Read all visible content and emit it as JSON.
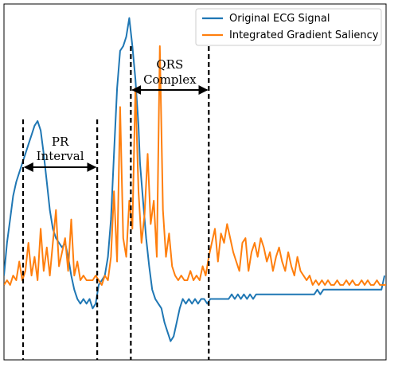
{
  "chart_data": {
    "type": "line",
    "xlim": [
      0,
      500
    ],
    "ylim": [
      -1.6,
      6.0
    ],
    "grid": false,
    "axis_ticks": false,
    "legend_location": "top-right",
    "series": [
      {
        "name": "Original ECG Signal",
        "color": "#1f77b4",
        "x": [
          0,
          4,
          8,
          12,
          16,
          20,
          24,
          28,
          32,
          36,
          40,
          44,
          48,
          52,
          56,
          60,
          64,
          68,
          72,
          76,
          80,
          84,
          88,
          92,
          96,
          100,
          104,
          108,
          112,
          116,
          120,
          124,
          128,
          132,
          136,
          140,
          144,
          148,
          152,
          156,
          160,
          164,
          168,
          172,
          176,
          178,
          182,
          186,
          190,
          194,
          198,
          202,
          206,
          210,
          214,
          218,
          222,
          226,
          230,
          234,
          238,
          242,
          246,
          250,
          254,
          258,
          262,
          266,
          270,
          274,
          278,
          282,
          286,
          290,
          294,
          298,
          302,
          306,
          310,
          314,
          318,
          322,
          326,
          330,
          334,
          338,
          342,
          346,
          350,
          354,
          358,
          362,
          366,
          370,
          374,
          378,
          382,
          386,
          390,
          394,
          398,
          402,
          406,
          410,
          414,
          418,
          422,
          426,
          430,
          434,
          438,
          442,
          446,
          450,
          454,
          458,
          462,
          466,
          470,
          474,
          478,
          482,
          486,
          490,
          494,
          498
        ],
        "y": [
          0.2,
          0.9,
          1.4,
          1.9,
          2.2,
          2.4,
          2.6,
          2.8,
          3.0,
          3.2,
          3.4,
          3.5,
          3.3,
          2.8,
          2.2,
          1.6,
          1.2,
          1.0,
          0.9,
          0.8,
          0.9,
          0.6,
          0.2,
          -0.1,
          -0.3,
          -0.4,
          -0.3,
          -0.4,
          -0.3,
          -0.5,
          -0.4,
          0.0,
          0.1,
          0.2,
          0.6,
          1.4,
          2.8,
          4.2,
          5.0,
          5.1,
          5.3,
          5.7,
          5.1,
          4.4,
          3.4,
          2.6,
          1.8,
          1.0,
          0.4,
          -0.1,
          -0.3,
          -0.4,
          -0.5,
          -0.8,
          -1.0,
          -1.2,
          -1.1,
          -0.8,
          -0.5,
          -0.3,
          -0.4,
          -0.3,
          -0.4,
          -0.3,
          -0.4,
          -0.3,
          -0.3,
          -0.4,
          -0.3,
          -0.3,
          -0.3,
          -0.3,
          -0.3,
          -0.3,
          -0.3,
          -0.2,
          -0.3,
          -0.2,
          -0.3,
          -0.2,
          -0.3,
          -0.2,
          -0.3,
          -0.2,
          -0.2,
          -0.2,
          -0.2,
          -0.2,
          -0.2,
          -0.2,
          -0.2,
          -0.2,
          -0.2,
          -0.2,
          -0.2,
          -0.2,
          -0.2,
          -0.2,
          -0.2,
          -0.2,
          -0.2,
          -0.2,
          -0.2,
          -0.1,
          -0.2,
          -0.1,
          -0.1,
          -0.1,
          -0.1,
          -0.1,
          -0.1,
          -0.1,
          -0.1,
          -0.1,
          -0.1,
          -0.1,
          -0.1,
          -0.1,
          -0.1,
          -0.1,
          -0.1,
          -0.1,
          -0.1,
          -0.1,
          -0.1,
          0.2
        ]
      },
      {
        "name": "Integrated Gradient Saliency",
        "color": "#ff7f0e",
        "x": [
          0,
          4,
          8,
          12,
          16,
          20,
          24,
          28,
          32,
          36,
          40,
          44,
          48,
          52,
          56,
          60,
          64,
          68,
          72,
          76,
          80,
          84,
          88,
          92,
          96,
          100,
          104,
          108,
          112,
          116,
          120,
          124,
          128,
          132,
          136,
          140,
          144,
          148,
          152,
          156,
          160,
          164,
          168,
          172,
          176,
          180,
          184,
          188,
          192,
          196,
          200,
          204,
          208,
          212,
          216,
          220,
          224,
          228,
          232,
          236,
          240,
          244,
          248,
          252,
          256,
          260,
          264,
          268,
          272,
          276,
          280,
          284,
          288,
          292,
          296,
          300,
          304,
          308,
          312,
          316,
          320,
          324,
          328,
          332,
          336,
          340,
          344,
          348,
          352,
          356,
          360,
          364,
          368,
          372,
          376,
          380,
          384,
          388,
          392,
          396,
          400,
          404,
          408,
          412,
          416,
          420,
          424,
          428,
          432,
          436,
          440,
          444,
          448,
          452,
          456,
          460,
          464,
          468,
          472,
          476,
          480,
          484,
          488,
          492,
          496,
          500
        ],
        "y": [
          0.0,
          0.1,
          0.0,
          0.2,
          0.1,
          0.5,
          0.1,
          0.3,
          0.9,
          0.2,
          0.6,
          0.1,
          1.2,
          0.3,
          0.8,
          0.2,
          0.9,
          1.6,
          0.4,
          0.7,
          1.0,
          0.3,
          1.4,
          0.2,
          0.5,
          0.1,
          0.2,
          0.1,
          0.1,
          0.1,
          0.2,
          0.1,
          0.0,
          0.2,
          0.1,
          0.6,
          2.0,
          0.5,
          3.8,
          1.0,
          0.6,
          1.8,
          1.2,
          4.2,
          2.0,
          0.9,
          1.5,
          2.8,
          1.3,
          1.8,
          0.6,
          5.1,
          1.6,
          0.6,
          1.1,
          0.4,
          0.2,
          0.1,
          0.2,
          0.1,
          0.1,
          0.3,
          0.1,
          0.2,
          0.1,
          0.4,
          0.2,
          0.6,
          0.9,
          1.2,
          0.5,
          1.1,
          0.9,
          1.3,
          1.0,
          0.7,
          0.5,
          0.3,
          0.9,
          1.0,
          0.3,
          0.7,
          0.9,
          0.6,
          1.0,
          0.8,
          0.5,
          0.7,
          0.3,
          0.6,
          0.8,
          0.5,
          0.3,
          0.7,
          0.4,
          0.2,
          0.6,
          0.3,
          0.2,
          0.1,
          0.2,
          0.0,
          0.1,
          0.0,
          0.1,
          0.0,
          0.1,
          0.0,
          0.0,
          0.1,
          0.0,
          0.0,
          0.1,
          0.0,
          0.1,
          0.0,
          0.0,
          0.1,
          0.0,
          0.1,
          0.0,
          0.0,
          0.1,
          0.0,
          0.0,
          0.0
        ]
      }
    ],
    "annotations": [
      {
        "text_line1": "PR",
        "text_line2": "Interval",
        "x_start": 25,
        "x_end": 122
      },
      {
        "text_line1": "QRS",
        "text_line2": "Complex",
        "x_start": 166,
        "x_end": 268
      }
    ]
  }
}
